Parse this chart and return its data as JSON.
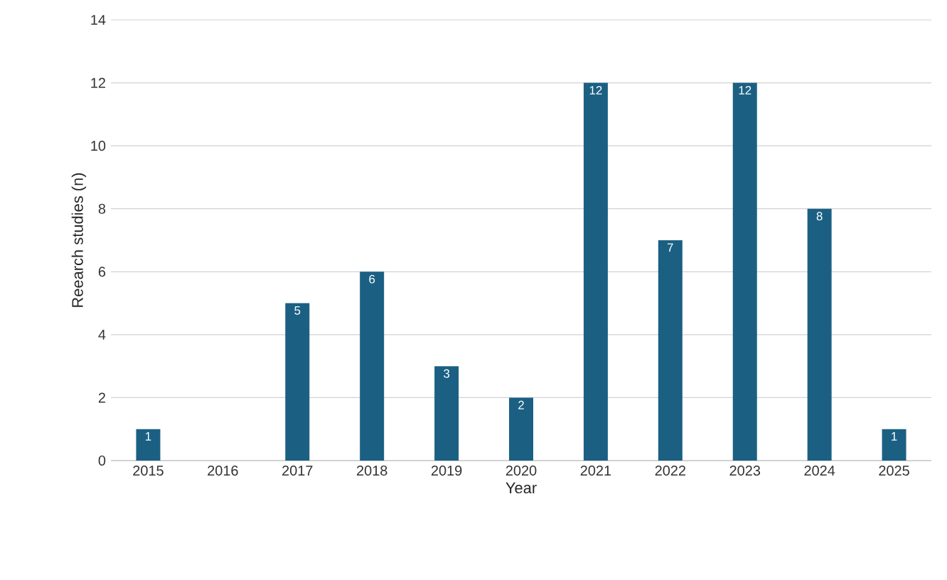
{
  "chart_data": {
    "type": "bar",
    "xlabel": "Year",
    "ylabel": "Reearch studies (n)",
    "categories": [
      "2015",
      "2016",
      "2017",
      "2018",
      "2019",
      "2020",
      "2021",
      "2022",
      "2023",
      "2024",
      "2025"
    ],
    "values": [
      1,
      0,
      5,
      6,
      3,
      2,
      12,
      7,
      12,
      8,
      1
    ],
    "value_labels": [
      "1",
      null,
      "5",
      "6",
      "3",
      "2",
      "12",
      "7",
      "12",
      "8",
      "1"
    ],
    "color": "#1b6083",
    "ylim": [
      0,
      14
    ],
    "yticks": [
      0,
      2,
      4,
      6,
      8,
      10,
      12,
      14
    ],
    "grid": "y"
  }
}
